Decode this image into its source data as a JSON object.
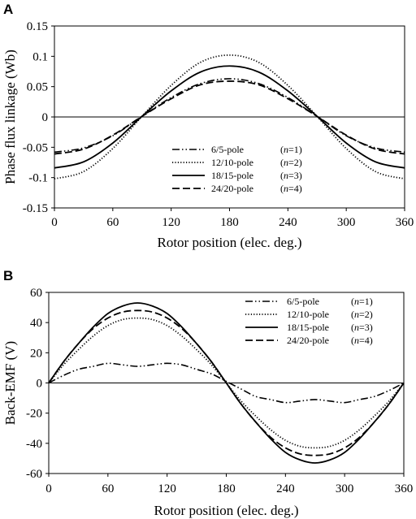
{
  "chart_data": [
    {
      "panel": "A",
      "type": "line",
      "xlabel": "Rotor position (elec. deg.)",
      "ylabel": "Phase flux linkage (Wb)",
      "xlim": [
        0,
        360
      ],
      "ylim": [
        -0.15,
        0.15
      ],
      "xticks": [
        "0",
        "60",
        "120",
        "180",
        "240",
        "300",
        "360"
      ],
      "yticks": [
        "0.15",
        "0.1",
        "0.05",
        "0",
        "-0.05",
        "-0.1",
        "-0.15"
      ],
      "legend_position": "lower-center",
      "x": [
        0,
        30,
        60,
        90,
        120,
        150,
        180,
        210,
        240,
        270,
        300,
        330,
        360
      ],
      "series": [
        {
          "name": "6/5-pole",
          "n_label": "(n=1)",
          "style": "dash-dot-dot",
          "values": [
            -0.058,
            -0.051,
            -0.031,
            0.001,
            0.032,
            0.055,
            0.063,
            0.055,
            0.032,
            0.001,
            -0.031,
            -0.051,
            -0.058
          ]
        },
        {
          "name": "12/10-pole",
          "n_label": "(n=2)",
          "style": "dotted",
          "values": [
            -0.102,
            -0.09,
            -0.052,
            0.001,
            0.052,
            0.09,
            0.102,
            0.09,
            0.052,
            0.001,
            -0.052,
            -0.09,
            -0.102
          ]
        },
        {
          "name": "18/15-pole",
          "n_label": "(n=3)",
          "style": "solid",
          "values": [
            -0.084,
            -0.074,
            -0.043,
            0.001,
            0.043,
            0.074,
            0.084,
            0.074,
            0.043,
            0.001,
            -0.043,
            -0.074,
            -0.084
          ]
        },
        {
          "name": "24/20-pole",
          "n_label": "(n=4)",
          "style": "dashed",
          "values": [
            -0.061,
            -0.053,
            -0.03,
            0.001,
            0.03,
            0.053,
            0.059,
            0.053,
            0.03,
            0.001,
            -0.03,
            -0.053,
            -0.061
          ]
        }
      ]
    },
    {
      "panel": "B",
      "type": "line",
      "xlabel": "Rotor position (elec. deg.)",
      "ylabel": "Back-EMF (V)",
      "xlim": [
        0,
        360
      ],
      "ylim": [
        -60,
        60
      ],
      "xticks": [
        "0",
        "60",
        "120",
        "180",
        "240",
        "300",
        "360"
      ],
      "yticks": [
        "60",
        "40",
        "20",
        "0",
        "-20",
        "-40",
        "-60"
      ],
      "legend_position": "top-right",
      "x": [
        0,
        15,
        30,
        45,
        60,
        75,
        90,
        105,
        120,
        135,
        150,
        165,
        180,
        195,
        210,
        225,
        240,
        255,
        270,
        285,
        300,
        315,
        330,
        345,
        360
      ],
      "series": [
        {
          "name": "6/5-pole",
          "n_label": "(n=1)",
          "style": "dash-dot-dot",
          "values": [
            0,
            5,
            9,
            11,
            13,
            12,
            11,
            12,
            13,
            12,
            9,
            6,
            1,
            -4,
            -9,
            -11,
            -13,
            -12,
            -11,
            -12,
            -13,
            -11,
            -9,
            -5,
            0
          ]
        },
        {
          "name": "12/10-pole",
          "n_label": "(n=2)",
          "style": "dotted",
          "values": [
            0,
            12,
            22,
            31,
            38,
            42,
            43,
            42,
            38,
            31,
            22,
            12,
            0,
            -12,
            -22,
            -31,
            -38,
            -42,
            -43,
            -42,
            -38,
            -31,
            -22,
            -12,
            0
          ]
        },
        {
          "name": "18/15-pole",
          "n_label": "(n=3)",
          "style": "solid",
          "values": [
            0,
            14,
            26,
            37,
            46,
            51,
            53,
            51,
            46,
            37,
            26,
            14,
            0,
            -14,
            -26,
            -37,
            -46,
            -51,
            -53,
            -51,
            -46,
            -37,
            -26,
            -14,
            0
          ]
        },
        {
          "name": "24/20-pole",
          "n_label": "(n=4)",
          "style": "dashed",
          "values": [
            0,
            14,
            26,
            36,
            43,
            47,
            48,
            47,
            43,
            36,
            26,
            14,
            0,
            -14,
            -26,
            -36,
            -43,
            -47,
            -48,
            -47,
            -43,
            -36,
            -26,
            -14,
            0
          ]
        }
      ]
    }
  ]
}
